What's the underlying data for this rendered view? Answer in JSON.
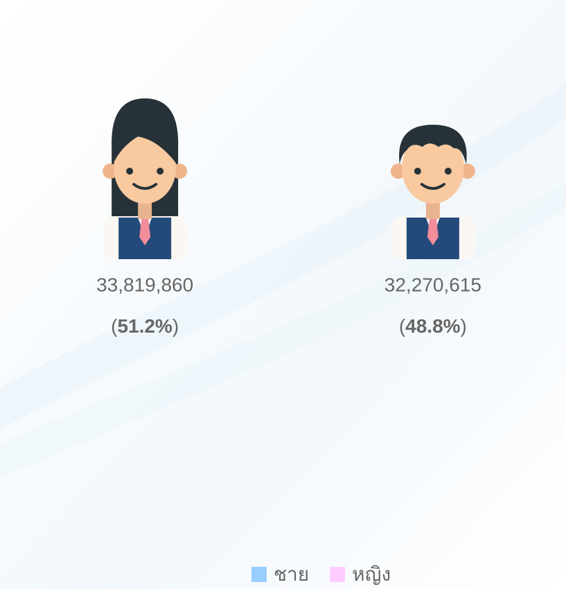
{
  "chart_data": {
    "type": "pie",
    "categories": [
      "ชาย",
      "หญิง"
    ],
    "values": [
      32270615,
      33819860
    ],
    "value_labels": [
      "32,270,615",
      "33,819,860"
    ],
    "percent_labels": [
      "48.8%",
      "51.2%"
    ],
    "colors": [
      "#99ccff",
      "#ffccff"
    ],
    "legend": "bottom"
  }
}
